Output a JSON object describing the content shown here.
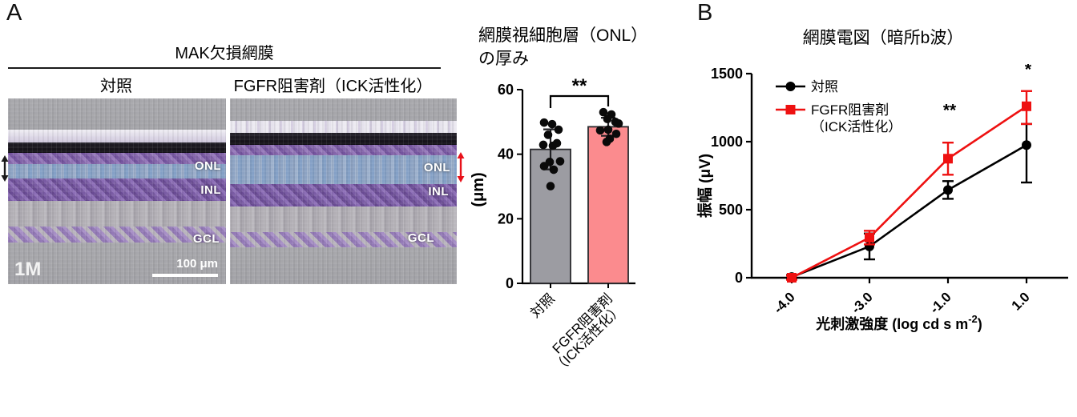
{
  "panel_a": {
    "letter": "A",
    "header": "MAK欠損網膜",
    "col_left": "対照",
    "col_right": "FGFR阻害剤（ICK活性化）",
    "img_left": {
      "onl": "ONL",
      "inl": "INL",
      "gcl": "GCL",
      "age": "1M",
      "scale": "100 μm"
    },
    "img_right": {
      "onl": "ONL",
      "inl": "INL",
      "gcl": "GCL"
    }
  },
  "panel_b": {
    "letter": "B"
  },
  "colors": {
    "control_bar": "#9c9ca2",
    "treated_bar": "#fb8b8e",
    "bar_edge": "#2a2a2e",
    "control_line": "#000000",
    "treated_line": "#ee1111",
    "arrow_control": "#1a1a1a",
    "arrow_treated": "#e8111a"
  },
  "chart_data": [
    {
      "type": "bar",
      "title": "網膜視細胞層（ONL）の厚み",
      "title_lines": [
        "網膜視細胞層（ONL）",
        "の厚み"
      ],
      "ylabel": "(μm)",
      "ylim": [
        0,
        60
      ],
      "yticks": [
        0,
        20,
        40,
        60
      ],
      "categories": [
        [
          "対照"
        ],
        [
          "FGFR阻害剤",
          "（ICK活性化）"
        ]
      ],
      "values": [
        41.5,
        48.5
      ],
      "errors": [
        6.2,
        2.8
      ],
      "bar_colors": [
        "#9c9ca2",
        "#fb8b8e"
      ],
      "points": [
        [
          [
            -8,
            49.8
          ],
          [
            2,
            49.3
          ],
          [
            10,
            47.6
          ],
          [
            -3,
            46.0
          ],
          [
            8,
            43.4
          ],
          [
            -9,
            42.9
          ],
          [
            3,
            42.6
          ],
          [
            12,
            37.8
          ],
          [
            -1,
            37.6
          ],
          [
            -8,
            36.3
          ],
          [
            4,
            35.2
          ],
          [
            0,
            30.1
          ]
        ],
        [
          [
            -6,
            53.0
          ],
          [
            4,
            52.3
          ],
          [
            -1,
            50.9
          ],
          [
            9,
            50.0
          ],
          [
            13,
            49.5
          ],
          [
            -10,
            47.4
          ],
          [
            0,
            47.6
          ],
          [
            10,
            46.3
          ],
          [
            2,
            44.8
          ],
          [
            -2,
            43.8
          ]
        ]
      ],
      "significance": "**"
    },
    {
      "type": "line",
      "title": "網膜電図（暗所b波）",
      "ylabel": "振幅 (μV)",
      "xlabel": {
        "main": "光刺激強度 (log cd s m",
        "sup": "-2",
        "close": ")"
      },
      "ylim": [
        0,
        1500
      ],
      "yticks": [
        0,
        500,
        1000,
        1500
      ],
      "x_ticklabels": [
        "-4.0",
        "-3.0",
        "-1.0",
        "1.0"
      ],
      "series": [
        {
          "name": "対照",
          "legend_lines": [
            "対照"
          ],
          "color": "#000000",
          "marker": "circle",
          "values": [
            5,
            230,
            645,
            975
          ],
          "err_plus": [
            15,
            95,
            65,
            155
          ],
          "err_minus": [
            15,
            95,
            65,
            275
          ]
        },
        {
          "name": "FGFR阻害剤（ICK活性化）",
          "legend_lines": [
            "FGFR阻害剤",
            "（ICK活性化）"
          ],
          "color": "#ee1111",
          "marker": "square",
          "values": [
            0,
            295,
            875,
            1260
          ],
          "err_plus": [
            15,
            50,
            118,
            112
          ],
          "err_minus": [
            15,
            50,
            118,
            130
          ]
        }
      ],
      "annotations": [
        {
          "x_index": 2,
          "text": "**",
          "y": 1190
        },
        {
          "x_index": 3,
          "text": "*",
          "y": 1490
        }
      ],
      "legend_position": "upper-left",
      "grid": false
    }
  ]
}
